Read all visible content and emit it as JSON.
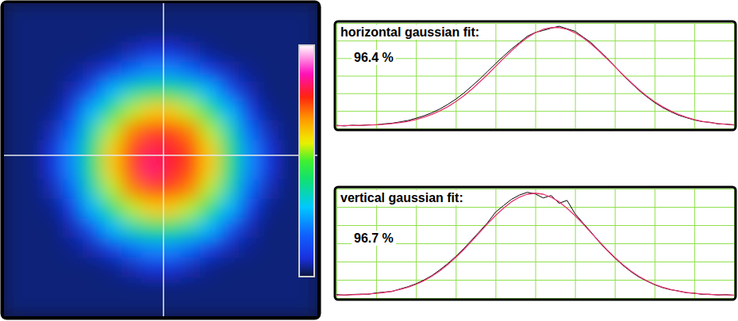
{
  "chart_data": [
    {
      "type": "heatmap",
      "tick_labels": false,
      "color_range": [
        0,
        100
      ],
      "cells": [
        [
          3,
          3,
          3,
          3,
          3,
          3,
          3,
          3,
          3,
          3,
          3,
          3,
          3,
          3,
          3,
          3
        ],
        [
          3,
          3,
          3,
          3,
          3,
          3,
          3,
          3,
          3,
          3,
          3,
          3,
          3,
          3,
          3,
          3
        ],
        [
          3,
          3,
          3,
          3,
          3,
          4,
          6,
          8,
          8,
          6,
          4,
          3,
          3,
          3,
          3,
          3
        ],
        [
          3,
          3,
          3,
          4,
          6,
          11,
          19,
          23,
          23,
          19,
          11,
          6,
          4,
          3,
          3,
          3
        ],
        [
          3,
          3,
          3,
          6,
          15,
          28,
          37,
          42,
          42,
          37,
          28,
          15,
          6,
          3,
          3,
          3
        ],
        [
          3,
          3,
          4,
          11,
          28,
          42,
          55,
          62,
          62,
          55,
          42,
          28,
          11,
          4,
          3,
          3
        ],
        [
          3,
          3,
          6,
          19,
          37,
          55,
          70,
          75,
          75,
          70,
          55,
          37,
          19,
          6,
          3,
          3
        ],
        [
          3,
          3,
          8,
          23,
          42,
          62,
          75,
          82,
          80,
          75,
          62,
          42,
          23,
          8,
          3,
          3
        ],
        [
          3,
          3,
          8,
          23,
          42,
          62,
          75,
          84,
          80,
          75,
          62,
          42,
          23,
          8,
          3,
          3
        ],
        [
          3,
          3,
          6,
          19,
          37,
          55,
          70,
          75,
          75,
          70,
          55,
          37,
          19,
          6,
          3,
          3
        ],
        [
          3,
          3,
          4,
          11,
          28,
          42,
          55,
          62,
          62,
          55,
          42,
          28,
          11,
          4,
          3,
          3
        ],
        [
          3,
          3,
          3,
          6,
          15,
          28,
          37,
          42,
          42,
          37,
          28,
          15,
          6,
          3,
          3,
          3
        ],
        [
          3,
          3,
          3,
          4,
          6,
          11,
          19,
          23,
          23,
          19,
          11,
          6,
          4,
          3,
          3,
          3
        ],
        [
          3,
          3,
          3,
          3,
          3,
          4,
          6,
          8,
          8,
          6,
          4,
          3,
          3,
          3,
          3,
          3
        ],
        [
          3,
          3,
          3,
          3,
          3,
          3,
          3,
          3,
          3,
          3,
          3,
          3,
          3,
          3,
          3,
          3
        ],
        [
          3,
          3,
          3,
          3,
          3,
          3,
          3,
          3,
          3,
          3,
          3,
          3,
          3,
          3,
          3,
          3
        ]
      ]
    },
    {
      "type": "line",
      "title": "horizontal gaussian fit:",
      "annotation": "96.4 %",
      "grid": true,
      "tick_labels": false,
      "xlim": [
        0,
        100
      ],
      "ylim": [
        0,
        120
      ],
      "xticks": [
        0,
        10,
        20,
        30,
        40,
        50,
        60,
        70,
        80,
        90,
        100
      ],
      "yticks": [
        0,
        20,
        40,
        60,
        80,
        100,
        120
      ],
      "x": [
        0,
        2,
        4,
        6,
        8,
        10,
        12,
        14,
        16,
        18,
        20,
        22,
        24,
        26,
        28,
        30,
        32,
        34,
        36,
        38,
        40,
        42,
        44,
        46,
        48,
        50,
        52,
        54,
        56,
        58,
        60,
        62,
        64,
        66,
        68,
        70,
        72,
        74,
        76,
        78,
        80,
        82,
        84,
        86,
        88,
        90,
        92,
        94,
        96,
        98,
        100
      ],
      "series": [
        {
          "color": "#000000",
          "values": [
            3.5,
            2.8,
            3.6,
            3.2,
            4.1,
            4.0,
            5.2,
            5.9,
            7.4,
            9.0,
            11.5,
            14.3,
            17.8,
            22.1,
            27.3,
            33.2,
            40.1,
            47.9,
            56.0,
            64.8,
            73.6,
            82.1,
            90.3,
            97.5,
            104.9,
            109.2,
            111.5,
            114.1,
            116.3,
            113.4,
            110.6,
            104.2,
            97.8,
            89.1,
            80.3,
            70.9,
            61.0,
            52.1,
            43.6,
            36.2,
            29.5,
            23.8,
            19.2,
            15.1,
            12.2,
            9.6,
            7.7,
            6.9,
            5.1,
            4.9,
            3.8
          ]
        },
        {
          "color": "#e8336d",
          "values": [
            3.0,
            3.2,
            3.3,
            3.5,
            3.8,
            4.2,
            4.7,
            5.5,
            6.6,
            8.1,
            10.1,
            12.7,
            15.9,
            19.9,
            24.7,
            30.4,
            37.0,
            44.5,
            52.7,
            61.4,
            70.5,
            79.5,
            88.2,
            96.3,
            103.4,
            108.9,
            112.8,
            114.8,
            114.8,
            112.8,
            108.9,
            103.4,
            96.3,
            88.2,
            79.5,
            70.5,
            61.4,
            52.7,
            44.5,
            37.0,
            30.4,
            24.7,
            19.9,
            15.9,
            12.7,
            10.1,
            8.1,
            6.6,
            5.5,
            4.7,
            4.2
          ]
        }
      ]
    },
    {
      "type": "line",
      "title": "vertical gaussian fit:",
      "annotation": "96.7 %",
      "grid": true,
      "tick_labels": false,
      "xlim": [
        0,
        100
      ],
      "ylim": [
        0,
        120
      ],
      "xticks": [
        0,
        10,
        20,
        30,
        40,
        50,
        60,
        70,
        80,
        90,
        100
      ],
      "yticks": [
        0,
        20,
        40,
        60,
        80,
        100,
        120
      ],
      "x": [
        0,
        2,
        4,
        6,
        8,
        10,
        12,
        14,
        16,
        18,
        20,
        22,
        24,
        26,
        28,
        30,
        32,
        34,
        36,
        38,
        40,
        42,
        44,
        46,
        48,
        50,
        52,
        54,
        56,
        58,
        60,
        62,
        64,
        66,
        68,
        70,
        72,
        74,
        76,
        78,
        80,
        82,
        84,
        86,
        88,
        90,
        92,
        94,
        96,
        98,
        100
      ],
      "series": [
        {
          "color": "#000000",
          "values": [
            3.8,
            3.1,
            3.9,
            4.2,
            4.1,
            5.6,
            6.5,
            7.2,
            9.9,
            12.4,
            15.6,
            19.8,
            24.6,
            30.9,
            37.8,
            45.6,
            54.2,
            63.5,
            73.0,
            82.6,
            94.1,
            101.3,
            108.2,
            112.9,
            116.0,
            114.2,
            109.8,
            112.5,
            103.9,
            107.1,
            92.5,
            82.4,
            72.6,
            61.8,
            52.4,
            43.9,
            36.0,
            29.1,
            23.2,
            18.7,
            14.6,
            11.4,
            9.1,
            7.8,
            5.8,
            5.3,
            4.0,
            4.1,
            3.3,
            3.7,
            3.0
          ]
        },
        {
          "color": "#e8336d",
          "values": [
            3.2,
            3.4,
            3.6,
            3.9,
            4.4,
            5.1,
            6.1,
            7.5,
            9.4,
            11.8,
            15.0,
            19.0,
            23.9,
            29.8,
            36.7,
            44.5,
            53.1,
            62.4,
            71.9,
            81.4,
            90.4,
            98.5,
            105.5,
            110.6,
            113.9,
            115,
            113.9,
            110.6,
            105.5,
            98.5,
            90.4,
            81.4,
            71.9,
            62.4,
            53.1,
            44.5,
            36.7,
            29.8,
            23.9,
            19.0,
            15.0,
            11.8,
            9.4,
            7.5,
            6.1,
            5.1,
            4.4,
            3.9,
            3.6,
            3.4,
            3.2
          ]
        }
      ]
    }
  ]
}
